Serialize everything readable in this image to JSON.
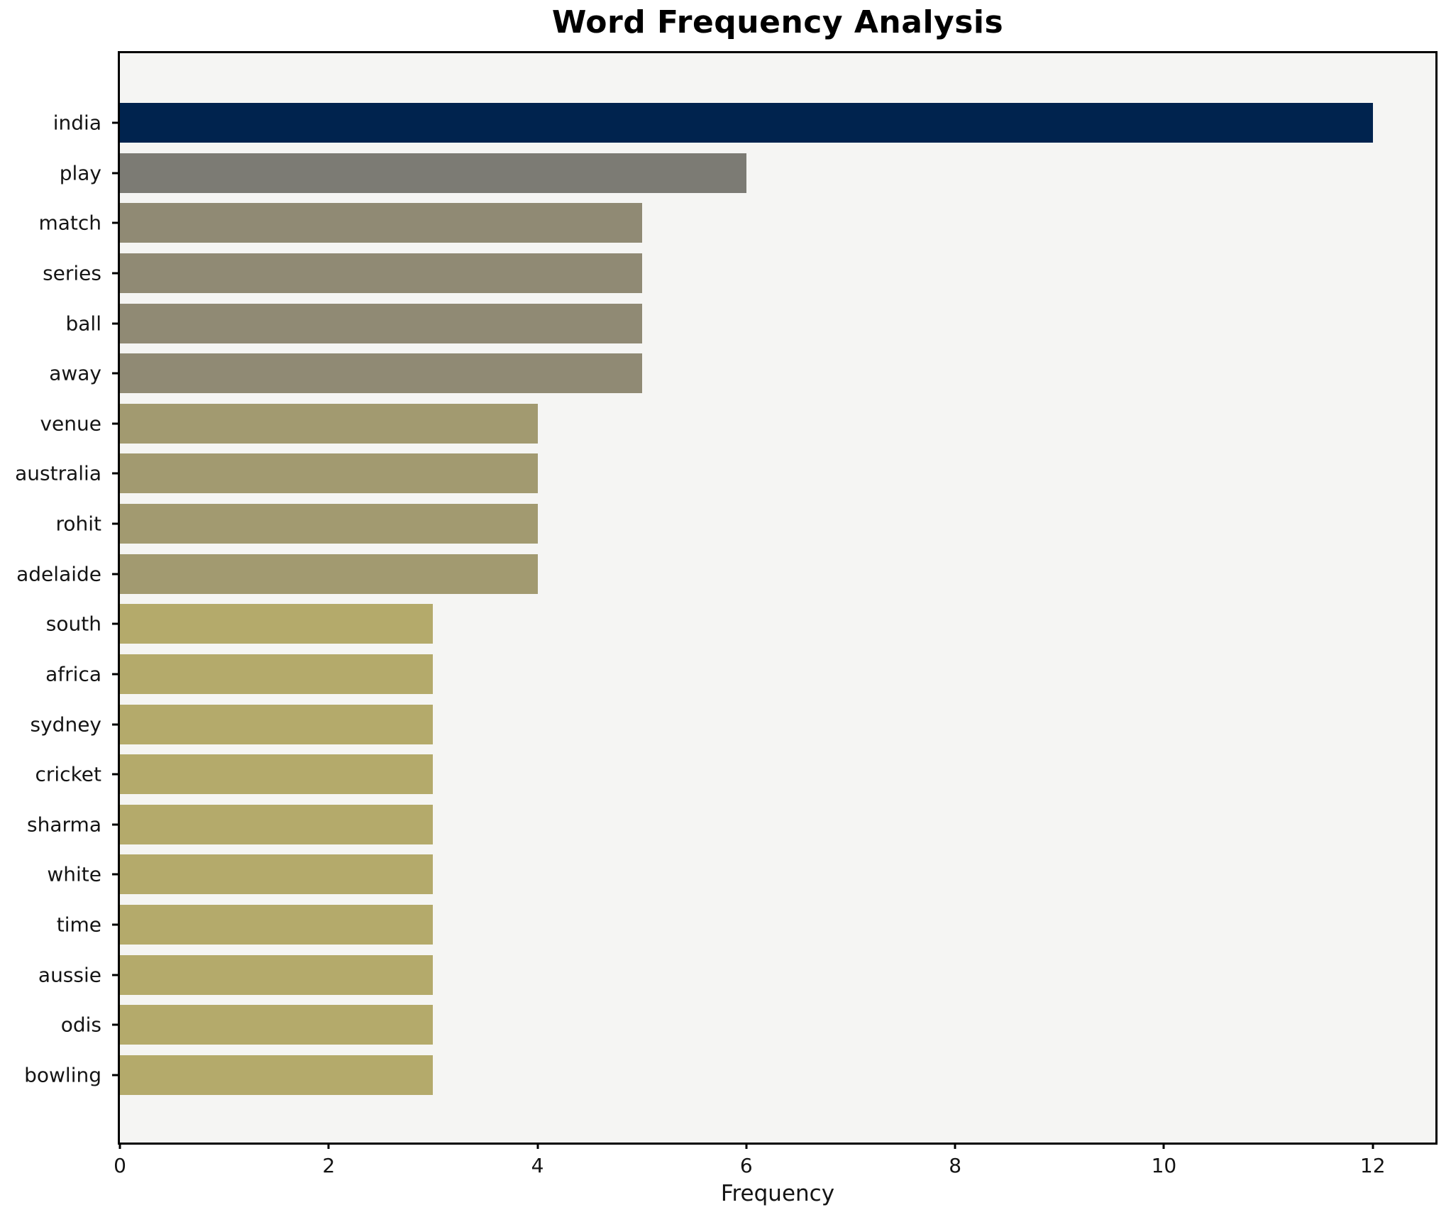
{
  "chart_data": {
    "type": "bar",
    "orientation": "horizontal",
    "title": "Word Frequency Analysis",
    "xlabel": "Frequency",
    "ylabel": "",
    "categories": [
      "india",
      "play",
      "match",
      "series",
      "ball",
      "away",
      "venue",
      "australia",
      "rohit",
      "adelaide",
      "south",
      "africa",
      "sydney",
      "cricket",
      "sharma",
      "white",
      "time",
      "aussie",
      "odis",
      "bowling"
    ],
    "values": [
      12,
      6,
      5,
      5,
      5,
      5,
      4,
      4,
      4,
      4,
      3,
      3,
      3,
      3,
      3,
      3,
      3,
      3,
      3,
      3
    ],
    "bar_colors": [
      "#00234e",
      "#7c7b74",
      "#908a74",
      "#908a74",
      "#908a74",
      "#908a74",
      "#a29a70",
      "#a29a70",
      "#a29a70",
      "#a29a70",
      "#b4aa6b",
      "#b4aa6b",
      "#b4aa6b",
      "#b4aa6b",
      "#b4aa6b",
      "#b4aa6b",
      "#b4aa6b",
      "#b4aa6b",
      "#b4aa6b",
      "#b4aa6b"
    ],
    "value_color_map": {
      "12": "#00234e",
      "6": "#7c7b74",
      "5": "#908a74",
      "4": "#a29a70",
      "3": "#b4aa6b"
    },
    "xticks": [
      0,
      2,
      4,
      6,
      8,
      10,
      12
    ],
    "xtick_labels": [
      "0",
      "2",
      "4",
      "6",
      "8",
      "10",
      "12"
    ],
    "xlim": [
      0,
      12.6
    ],
    "grid": false,
    "legend": null,
    "plot_background": "#f5f5f3",
    "figure_background": "#ffffff",
    "spine_color": "#000000"
  }
}
